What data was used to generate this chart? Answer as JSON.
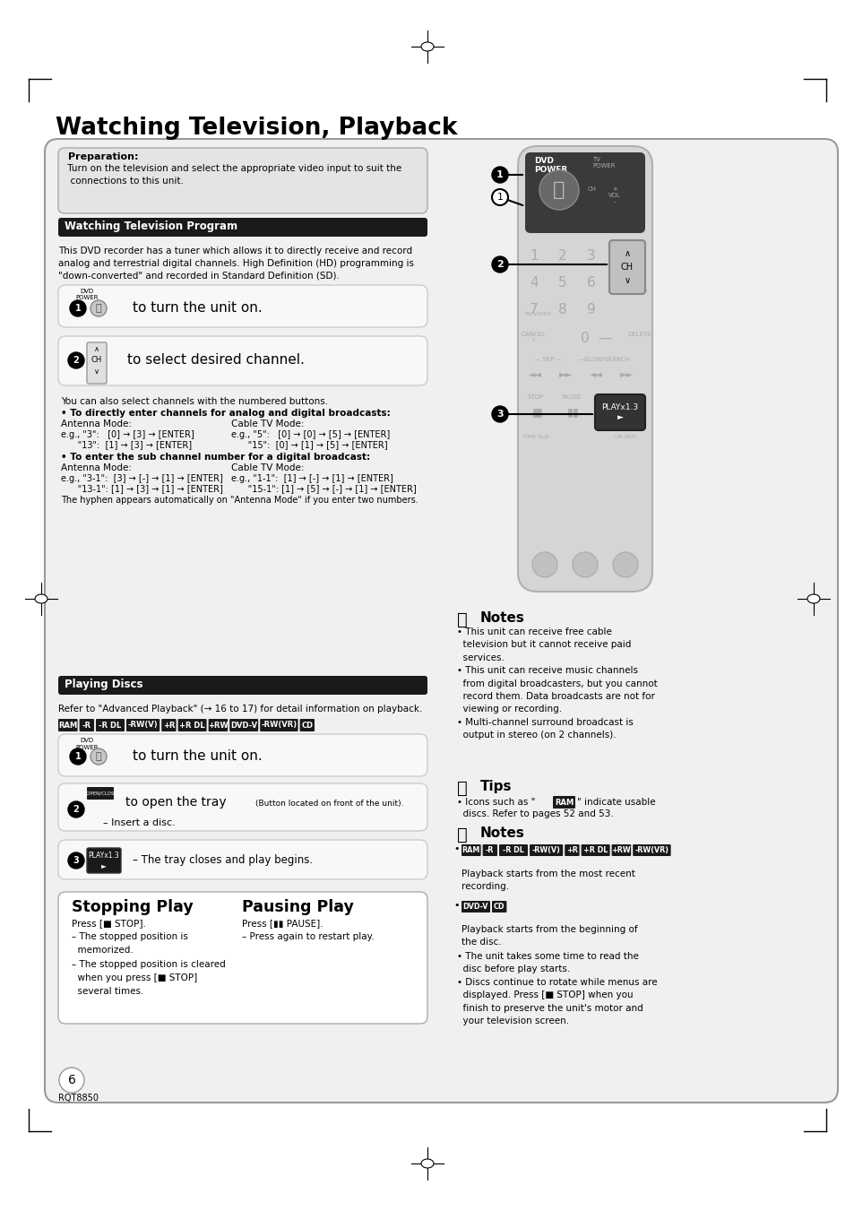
{
  "page_bg": "#ffffff",
  "main_title": "Watching Television, Playback",
  "section1_header": "Watching Television Program",
  "section2_header": "Playing Discs",
  "prep_title": "Preparation:",
  "prep_text": " Turn on the television and select the appropriate video input to suit the\n  connections to this unit.",
  "watch_body": "This DVD recorder has a tuner which allows it to directly receive and record\nanalog and terrestrial digital channels. High Definition (HD) programming is\n\"down-converted\" and recorded in Standard Definition (SD).",
  "step1_text": "to turn the unit on.",
  "step2_text": "to select desired channel.",
  "numbered_text": "You can also select channels with the numbered buttons.",
  "direct_bold": "• To directly enter channels for analog and digital broadcasts:",
  "antenna_label": "Antenna Mode:",
  "cable_label": "Cable TV Mode:",
  "ant_ex1": "e.g., \"3\":   [0] → [3] → [ENTER]",
  "ant_ex2": "      \"13\":  [1] → [3] → [ENTER]",
  "cable_ex1": "e.g., \"5\":   [0] → [0] → [5] → [ENTER]",
  "cable_ex2": "      \"15\":  [0] → [1] → [5] → [ENTER]",
  "sub_bold": "• To enter the sub channel number for a digital broadcast:",
  "ant_ex3": "e.g., \"3-1\":  [3] → [-] → [1] → [ENTER]",
  "ant_ex4": "      \"13-1\": [1] → [3] → [1] → [ENTER]",
  "cable_ex3": "e.g., \"1-1\":  [1] → [-] → [1] → [ENTER]",
  "cable_ex4": "      \"15-1\": [1] → [5] → [-] → [1] → [ENTER]",
  "hyphen_note": "The hyphen appears automatically on \"Antenna Mode\" if you enter two numbers.",
  "play_ref": "Refer to \"Advanced Playback\" (→ 16 to 17) for detail information on playback.",
  "disc_labels": [
    "RAM",
    "-R",
    "-R DL",
    "-RW(V)",
    "+R",
    "+R DL",
    "+RW",
    "DVD-V",
    "-RW(VR)",
    "CD"
  ],
  "play_step2b": "(Button located on front of the unit).",
  "play_step2c": "– Insert a disc.",
  "play_step3": "– The tray closes and play begins.",
  "tips_title": "Tips",
  "notes_title1": "Notes",
  "notes_text1": "• This unit can receive free cable\n  television but it cannot receive paid\n  services.\n• This unit can receive music channels\n  from digital broadcasters, but you cannot\n  record them. Data broadcasts are not for\n  viewing or recording.\n• Multi-channel surround broadcast is\n  output in stereo (on 2 channels).",
  "notes_title2": "Notes",
  "notes_labels2": [
    "RAM",
    "-R",
    "-R DL",
    "-RW(V)",
    "+R",
    "+R DL",
    "+RW",
    "-RW(VR)"
  ],
  "notes_text2a": "Playback starts from the most recent\nrecording.",
  "notes_labels3": [
    "DVD-V",
    "CD"
  ],
  "notes_text2b": "Playback starts from the beginning of\nthe disc.",
  "notes_text2c": "• The unit takes some time to read the\n  disc before play starts.\n• Discs continue to rotate while menus are\n  displayed. Press [■ STOP] when you\n  finish to preserve the unit's motor and\n  your television screen.",
  "stop_title": "Stopping Play",
  "stop_text": "Press [■ STOP].\n– The stopped position is\n  memorized.\n– The stopped position is cleared\n  when you press [■ STOP]\n  several times.",
  "pause_title": "Pausing Play",
  "pause_text": "Press [▮▮ PAUSE].\n– Press again to restart play.",
  "page_num": "6",
  "footer_code": "RQT8850"
}
